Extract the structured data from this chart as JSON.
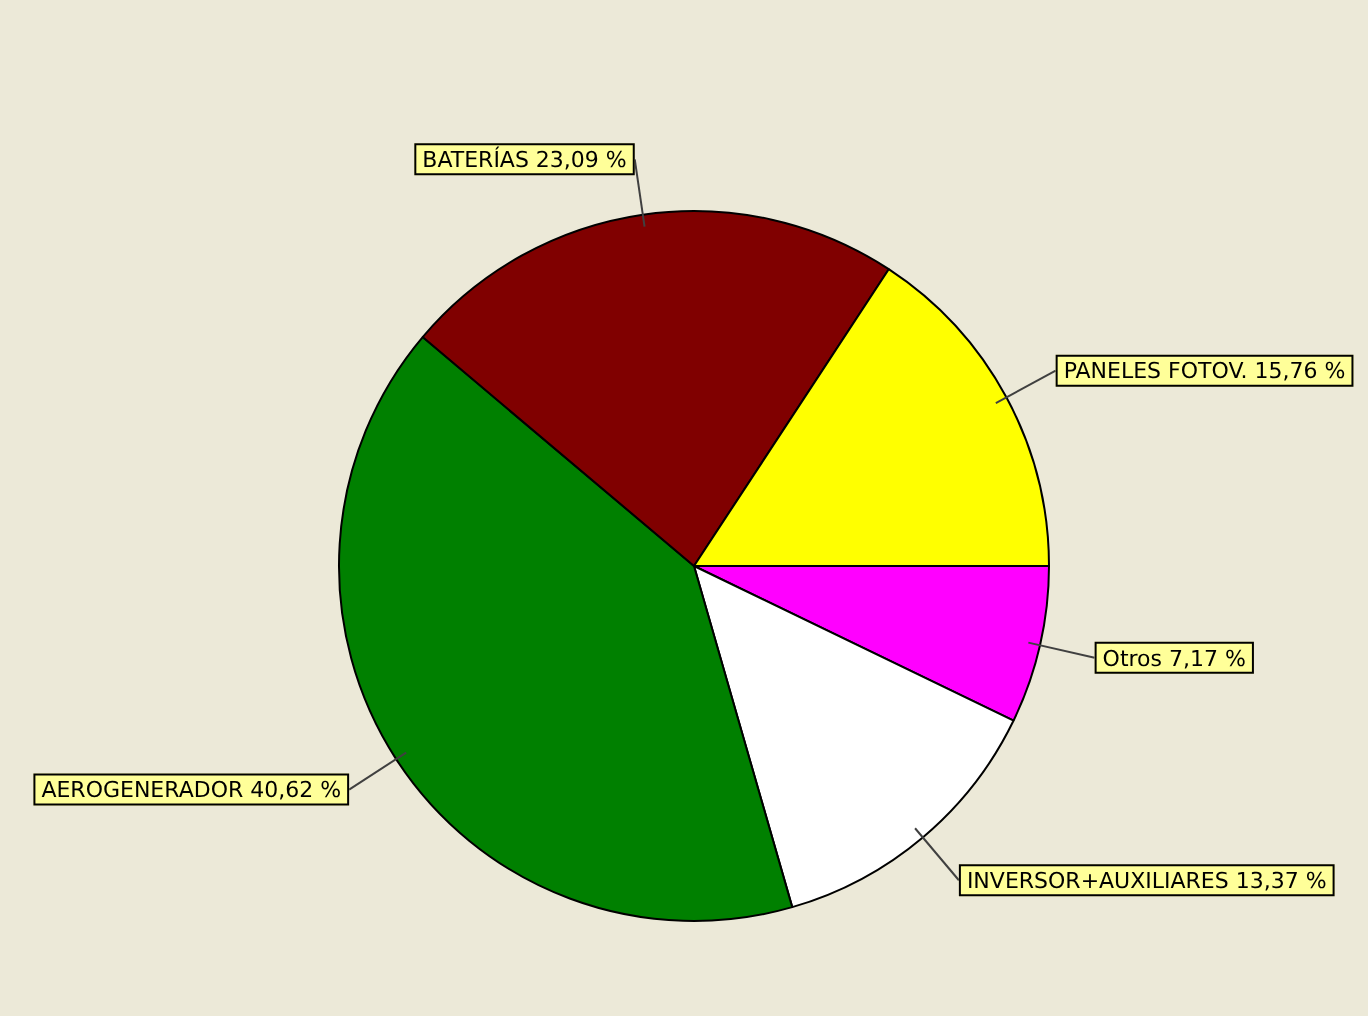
{
  "chart_data": {
    "type": "pie",
    "categories": [
      "Otros",
      "INVERSOR+AUXILIARES",
      "AEROGENERADOR",
      "BATERÍAS",
      "PANELES FOTOV."
    ],
    "values": [
      7.17,
      13.37,
      40.62,
      23.09,
      15.76
    ],
    "value_labels": [
      "7,17 %",
      "13,37 %",
      "40,62 %",
      "23,09 %",
      "15,76 %"
    ],
    "colors": [
      "#ff00ff",
      "#ffffff",
      "#008000",
      "#800000",
      "#ffff00"
    ],
    "legend": false
  }
}
